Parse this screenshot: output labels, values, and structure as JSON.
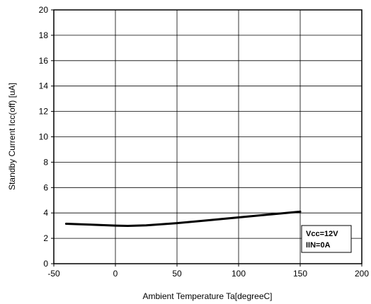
{
  "chart_data": {
    "type": "line",
    "title": "",
    "xlabel": "Ambient Temperature   Ta[degreeC]",
    "ylabel": "Standby Current   Icc(off) [uA]",
    "xlim": [
      -50,
      200
    ],
    "ylim": [
      0,
      20
    ],
    "x_ticks": [
      -50,
      0,
      50,
      100,
      150,
      200
    ],
    "y_ticks": [
      0,
      2,
      4,
      6,
      8,
      10,
      12,
      14,
      16,
      18,
      20
    ],
    "grid": true,
    "series": [
      {
        "color": "#000000",
        "x": [
          -40,
          -20,
          0,
          10,
          25,
          50,
          75,
          100,
          125,
          150
        ],
        "y": [
          3.15,
          3.08,
          3.0,
          2.98,
          3.02,
          3.2,
          3.42,
          3.65,
          3.88,
          4.1
        ]
      }
    ],
    "annotation": [
      "Vcc=12V",
      "IIN=0A"
    ]
  }
}
